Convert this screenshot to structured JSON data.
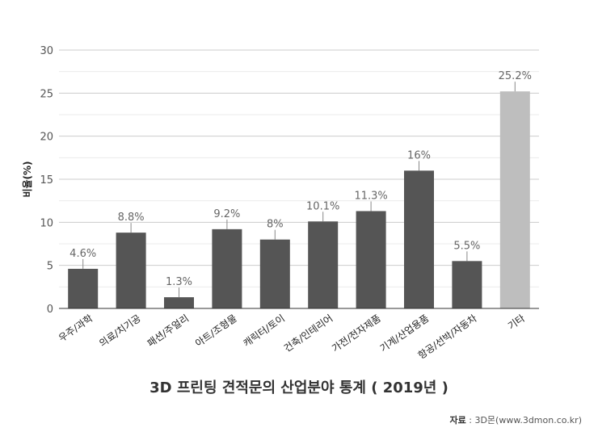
{
  "chart_data": {
    "type": "bar",
    "title": "3D 프린팅 견적문의 산업분야 통계 ( 2019년 )",
    "ylabel": "비율(%)",
    "xlabel": "",
    "ylim": [
      0,
      30
    ],
    "yticks": [
      0,
      5,
      10,
      15,
      20,
      25,
      30
    ],
    "grid": true,
    "categories": [
      "우주/과학",
      "의료/치기공",
      "패션/주얼리",
      "아트/조형물",
      "캐릭터/토이",
      "건축/인테리어",
      "가전/전자제품",
      "기계/산업용품",
      "항공/선박/자동차",
      "기타"
    ],
    "values": [
      4.6,
      8.8,
      1.3,
      9.2,
      8,
      10.1,
      11.3,
      16,
      5.5,
      25.2
    ],
    "value_labels": [
      "4.6%",
      "8.8%",
      "1.3%",
      "9.2%",
      "8%",
      "10.1%",
      "11.3%",
      "16%",
      "5.5%",
      "25.2%"
    ],
    "bar_colors": [
      "#555555",
      "#555555",
      "#555555",
      "#555555",
      "#555555",
      "#555555",
      "#555555",
      "#555555",
      "#555555",
      "#bebebe"
    ]
  },
  "source": {
    "label": "자료",
    "text": ": 3D몬(www.3dmon.co.kr)"
  }
}
